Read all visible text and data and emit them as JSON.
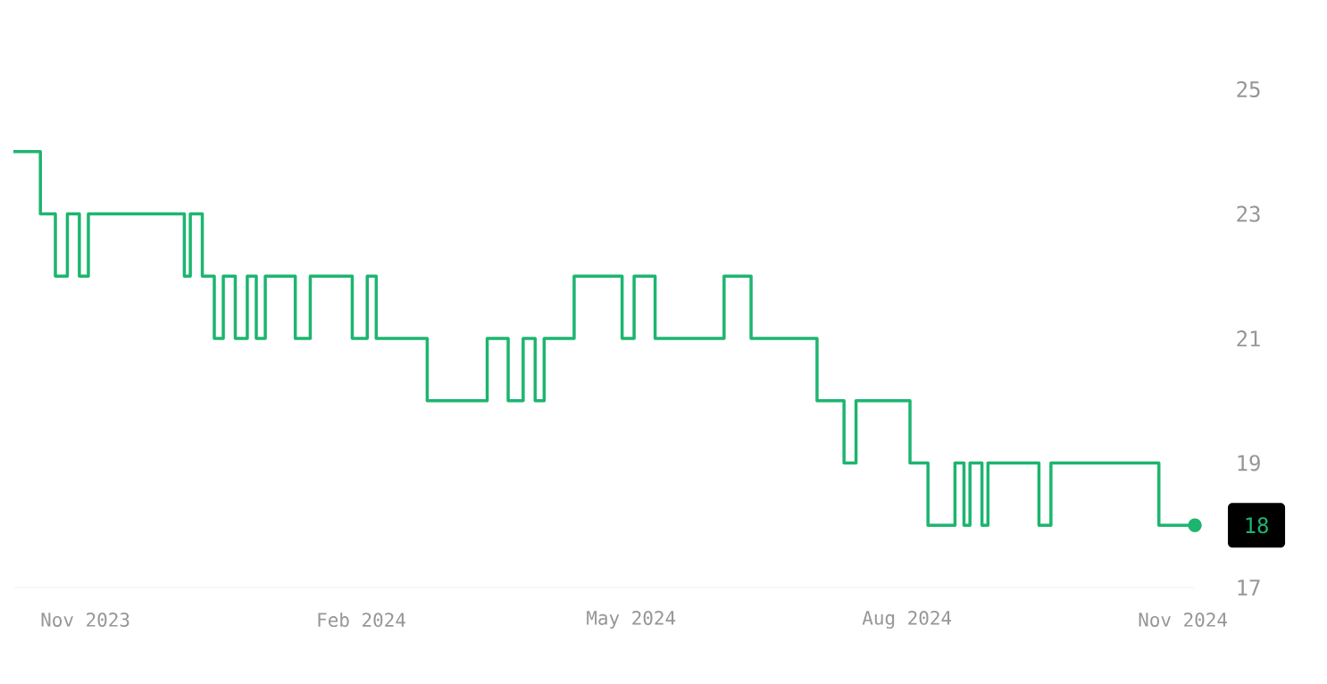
{
  "chart_data": {
    "type": "step",
    "x": [
      "2023-10-08",
      "2023-10-17",
      "2023-10-22",
      "2023-10-26",
      "2023-10-30",
      "2023-11-02",
      "2023-12-04",
      "2023-12-06",
      "2023-12-10",
      "2023-12-14",
      "2023-12-17",
      "2023-12-21",
      "2023-12-25",
      "2023-12-28",
      "2023-12-31",
      "2024-01-10",
      "2024-01-15",
      "2024-01-29",
      "2024-02-03",
      "2024-02-06",
      "2024-02-23",
      "2024-03-14",
      "2024-03-21",
      "2024-03-26",
      "2024-03-30",
      "2024-04-02",
      "2024-04-12",
      "2024-04-28",
      "2024-05-02",
      "2024-05-09",
      "2024-06-01",
      "2024-06-10",
      "2024-07-02",
      "2024-07-11",
      "2024-07-15",
      "2024-08-02",
      "2024-08-08",
      "2024-08-17",
      "2024-08-20",
      "2024-08-22",
      "2024-08-26",
      "2024-08-28",
      "2024-09-14",
      "2024-09-18",
      "2024-10-24",
      "2024-11-05"
    ],
    "xlim": [
      "2023-10-08",
      "2024-11-05"
    ],
    "series": [
      {
        "color": "#1db56f",
        "values": [
          24,
          23,
          22,
          23,
          22,
          23,
          22,
          23,
          22,
          21,
          22,
          21,
          22,
          21,
          22,
          21,
          22,
          21,
          22,
          21,
          20,
          21,
          20,
          21,
          20,
          21,
          22,
          21,
          22,
          21,
          22,
          21,
          20,
          19,
          20,
          19,
          18,
          19,
          18,
          19,
          18,
          19,
          18,
          19,
          18,
          18
        ]
      },
      {
        "type": "scatter",
        "color": "#1db56f",
        "x": [
          "2024-11-05"
        ],
        "values": [
          18
        ]
      }
    ],
    "xticks": [
      {
        "value": "2023-11-01",
        "label": "Nov 2023"
      },
      {
        "value": "2024-02-01",
        "label": "Feb 2024"
      },
      {
        "value": "2024-05-01",
        "label": "May 2024"
      },
      {
        "value": "2024-08-01",
        "label": "Aug 2024"
      },
      {
        "value": "2024-11-01",
        "label": "Nov 2024"
      }
    ],
    "ylim": [
      17,
      25
    ],
    "yticks": [
      17,
      19,
      21,
      23,
      25
    ],
    "annotations": [
      {
        "text": "18",
        "x": "2024-11-05",
        "y": 18
      }
    ]
  }
}
